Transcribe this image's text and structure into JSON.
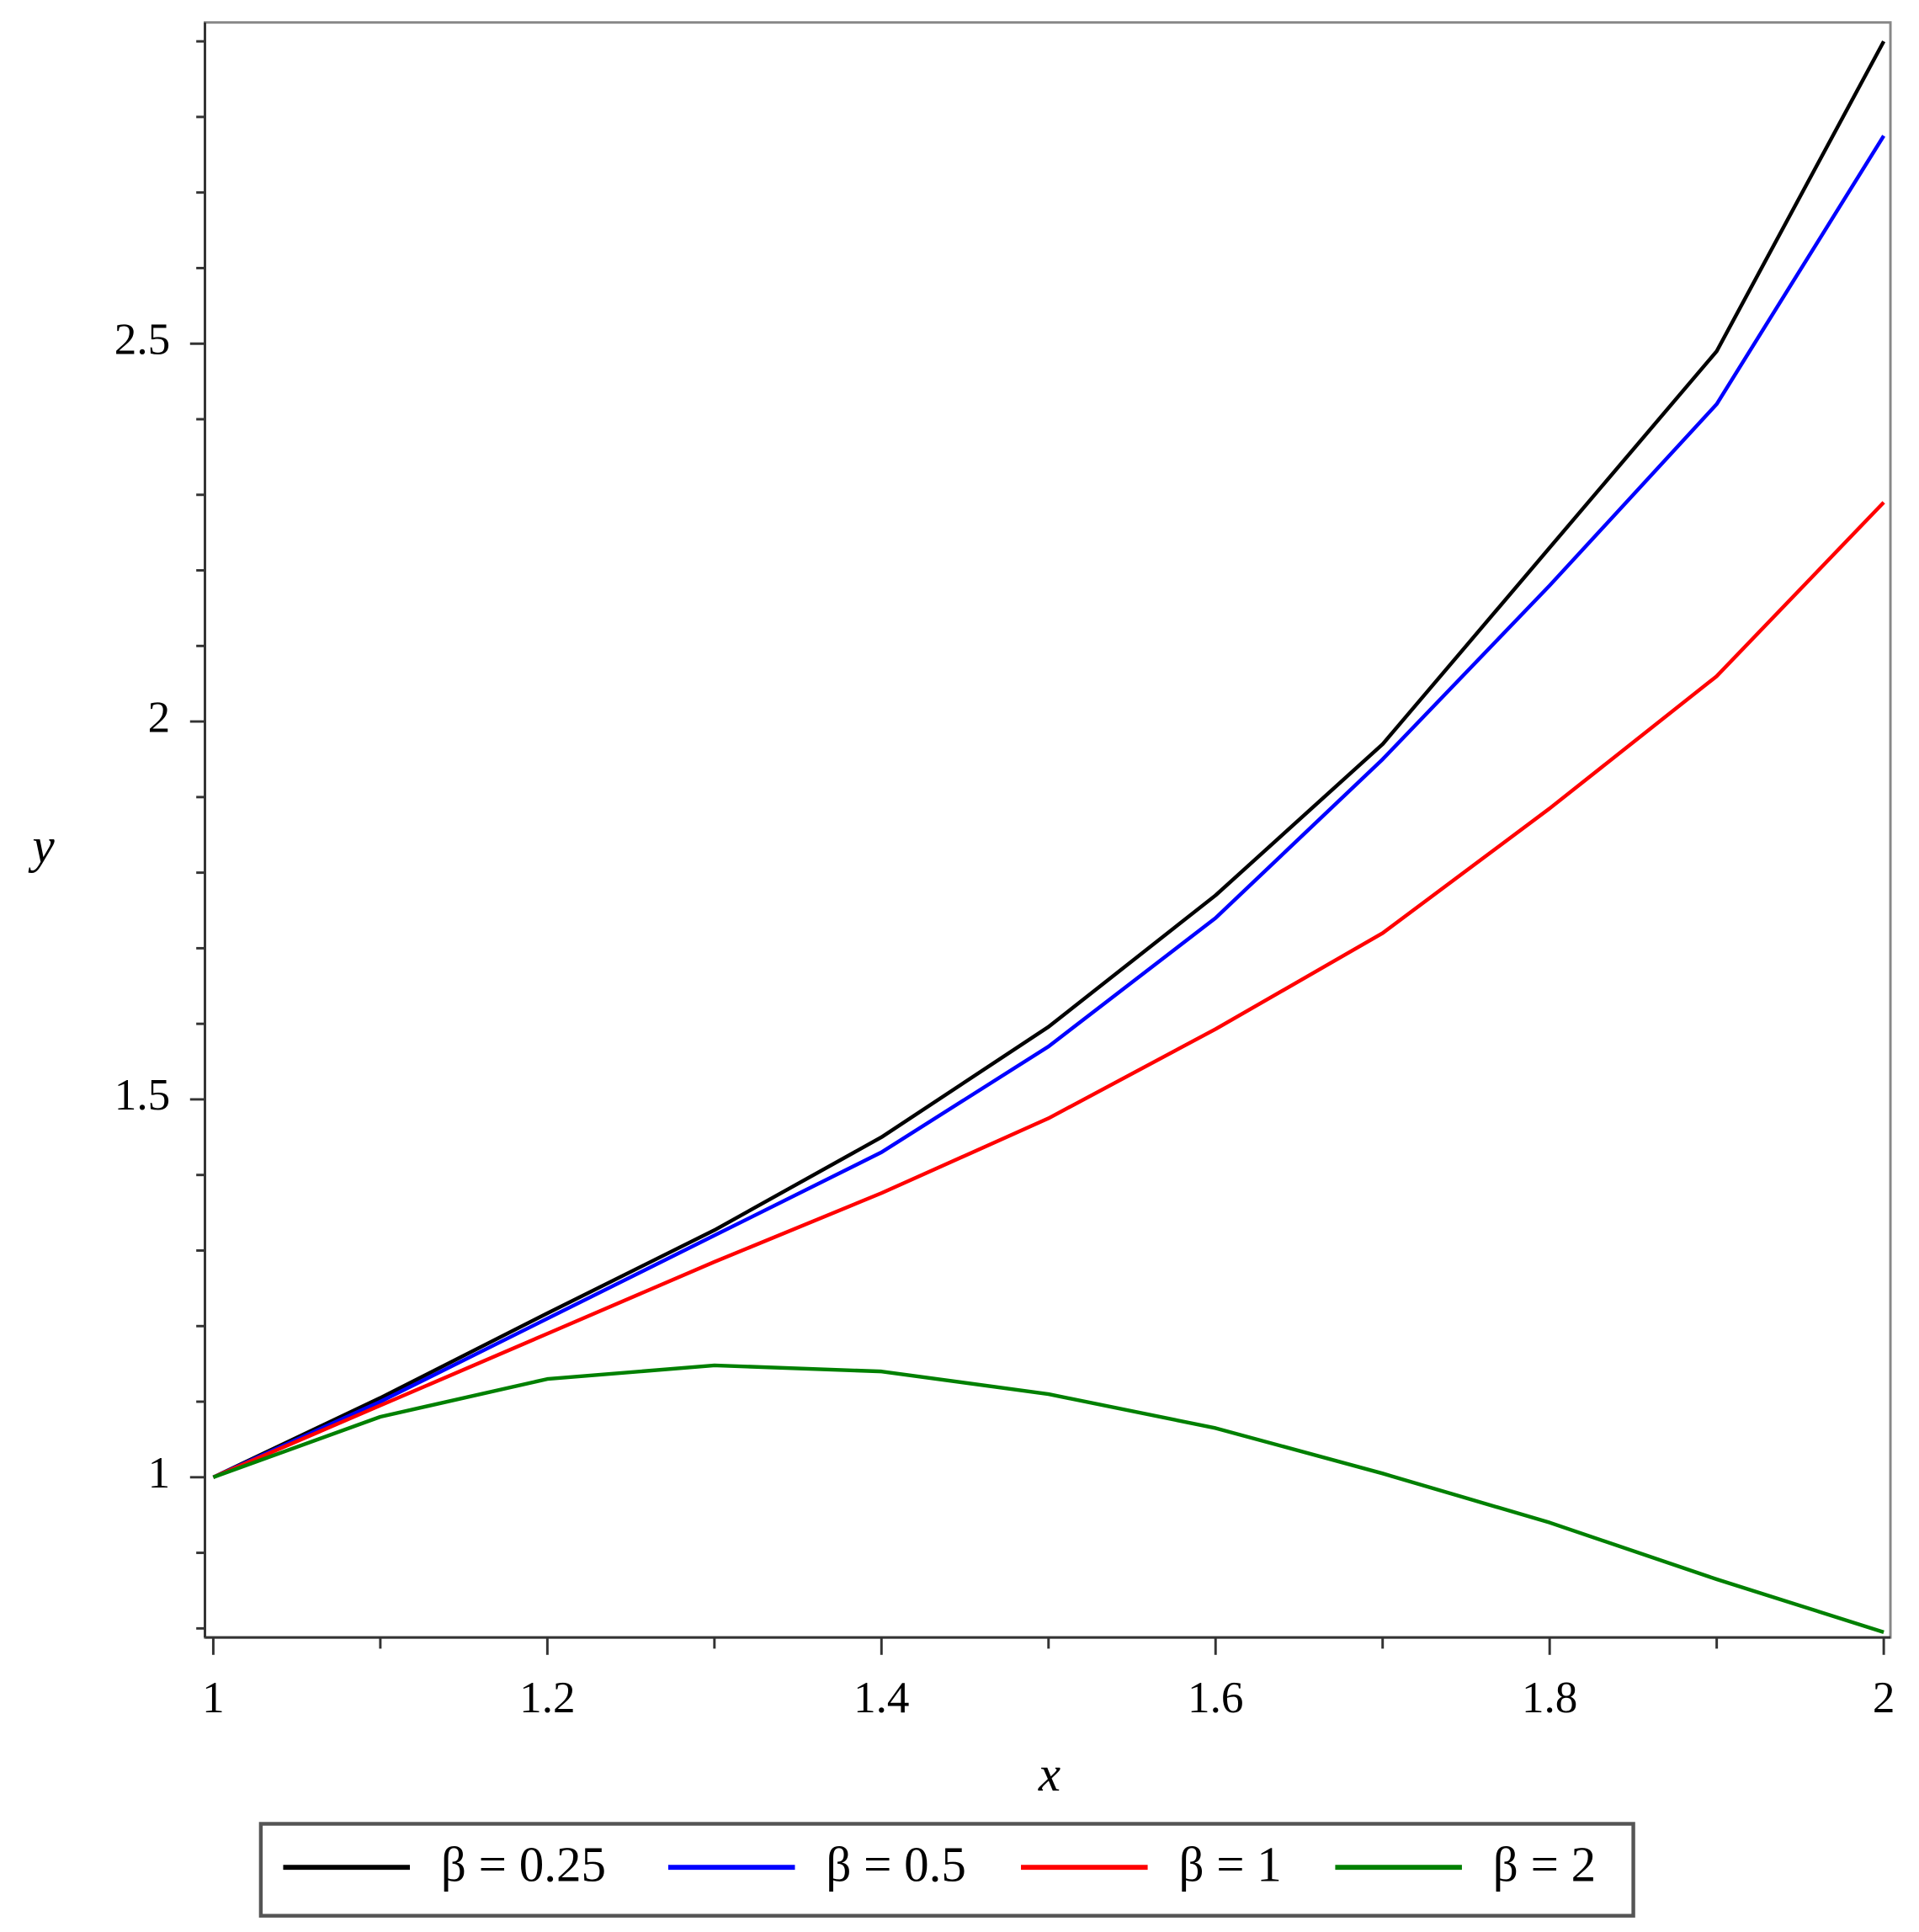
{
  "chart_data": {
    "type": "line",
    "x_label": "x",
    "y_label": "y",
    "x": [
      1,
      1.1,
      1.2,
      1.3,
      1.4,
      1.5,
      1.6,
      1.7,
      1.8,
      1.9,
      2
    ],
    "series": [
      {
        "name": "β = 0.25",
        "color": "#000000",
        "values": [
          1,
          1.105,
          1.217,
          1.327,
          1.45,
          1.596,
          1.77,
          1.97,
          2.23,
          2.49,
          2.9
        ]
      },
      {
        "name": "β = 0.5",
        "color": "#0000ff",
        "values": [
          1,
          1.1,
          1.21,
          1.32,
          1.43,
          1.57,
          1.74,
          1.95,
          2.18,
          2.42,
          2.775
        ]
      },
      {
        "name": "β = 1",
        "color": "#ff0000",
        "values": [
          1,
          1.095,
          1.19,
          1.285,
          1.376,
          1.475,
          1.593,
          1.72,
          1.885,
          2.06,
          2.29
        ]
      },
      {
        "name": "β = 2",
        "color": "#008000",
        "values": [
          1,
          1.08,
          1.13,
          1.148,
          1.14,
          1.11,
          1.065,
          1.005,
          0.94,
          0.865,
          0.795
        ]
      }
    ],
    "xlim": [
      0.995,
      2.004
    ],
    "ylim": [
      0.788,
      2.925
    ],
    "xticks": [
      1,
      1.2,
      1.4,
      1.6,
      1.8,
      2
    ],
    "xminorticks": [
      1.1,
      1.3,
      1.5,
      1.7,
      1.9
    ],
    "yticks": [
      1,
      1.5,
      2,
      2.5
    ],
    "yminorticks": [
      0.8,
      0.9,
      1.1,
      1.2,
      1.3,
      1.4,
      1.6,
      1.7,
      1.8,
      1.9,
      2.1,
      2.2,
      2.3,
      2.4,
      2.6,
      2.7,
      2.8,
      2.9
    ],
    "legend": "bottom"
  }
}
